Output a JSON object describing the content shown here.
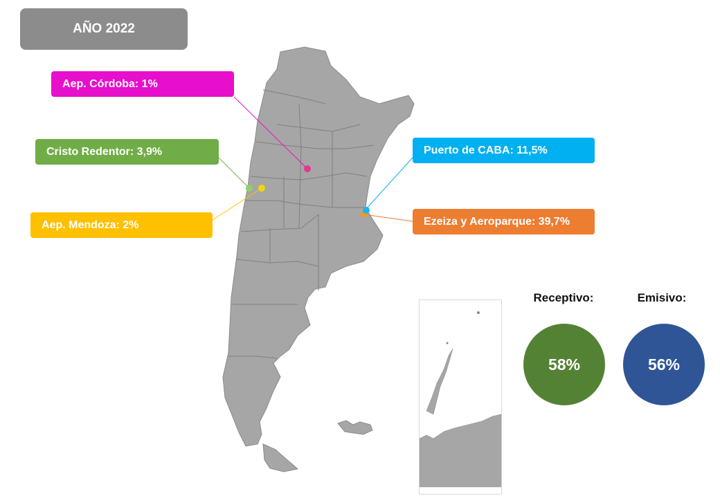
{
  "header": {
    "year_label": "AÑO 2022"
  },
  "points": [
    {
      "id": "cordoba",
      "label": "Aep. Córdoba: 1%",
      "color": "#e70fcb",
      "dot": "#e3388f"
    },
    {
      "id": "cristo",
      "label": "Cristo Redentor: 3,9%",
      "color": "#70ad47",
      "dot": "#8fd06b"
    },
    {
      "id": "mendoza",
      "label": "Aep. Mendoza: 2%",
      "color": "#ffc000",
      "dot": "#f0d80e"
    },
    {
      "id": "caba",
      "label": "Puerto de CABA: 11,5%",
      "color": "#00b0f0",
      "dot": "#1cb4f0"
    },
    {
      "id": "ezeiza",
      "label": "Ezeiza y Aeroparque: 39,7%",
      "color": "#ed7d31",
      "dot": "#f39a1e"
    }
  ],
  "stats": {
    "receptivo": {
      "title": "Receptivo:",
      "value": "58%",
      "color": "#548235"
    },
    "emisivo": {
      "title": "Emisivo:",
      "value": "56%",
      "color": "#2f5597"
    }
  },
  "map": {
    "land_color": "#a6a6a6",
    "border_color": "#7f7f7f"
  }
}
